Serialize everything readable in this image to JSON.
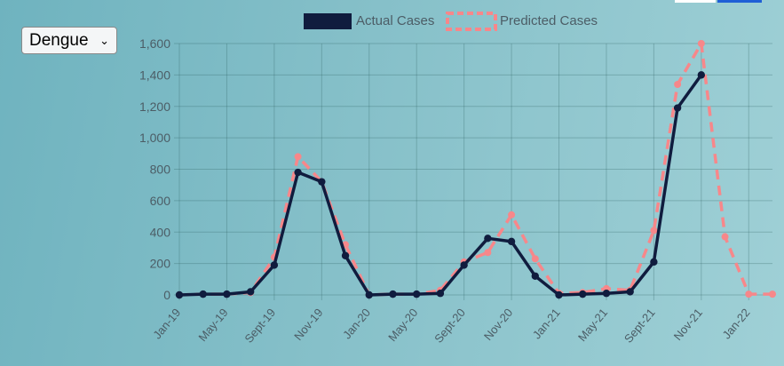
{
  "selector": {
    "value": "Dengue",
    "chevron_icon": "chevron-down-icon"
  },
  "chart_data": {
    "type": "line",
    "title": "",
    "xlabel": "",
    "ylabel": "",
    "ylim": [
      0,
      1600
    ],
    "yticks": [
      "0",
      "200",
      "400",
      "600",
      "800",
      "1,000",
      "1,200",
      "1,400",
      "1,600"
    ],
    "xtick_labels": [
      "Jan-19",
      "May-19",
      "Sept-19",
      "Nov-19",
      "Jan-20",
      "May-20",
      "Sept-20",
      "Nov-20",
      "Jan-21",
      "May-21",
      "Sept-21",
      "Nov-21",
      "Jan-22"
    ],
    "grid": true,
    "legend_position": "top-center",
    "series": [
      {
        "name": "Actual Cases",
        "color": "#101c3e",
        "style": "solid",
        "values": [
          0,
          5,
          5,
          20,
          190,
          780,
          720,
          250,
          0,
          5,
          5,
          10,
          190,
          360,
          340,
          120,
          0,
          5,
          10,
          20,
          210,
          1190,
          1400,
          null,
          null,
          null
        ]
      },
      {
        "name": "Predicted Cases",
        "color": "#f7878a",
        "style": "dashed",
        "values": [
          0,
          5,
          5,
          15,
          240,
          880,
          720,
          320,
          0,
          5,
          5,
          30,
          210,
          270,
          510,
          230,
          10,
          15,
          40,
          30,
          410,
          1340,
          1600,
          370,
          5,
          5
        ]
      }
    ]
  }
}
